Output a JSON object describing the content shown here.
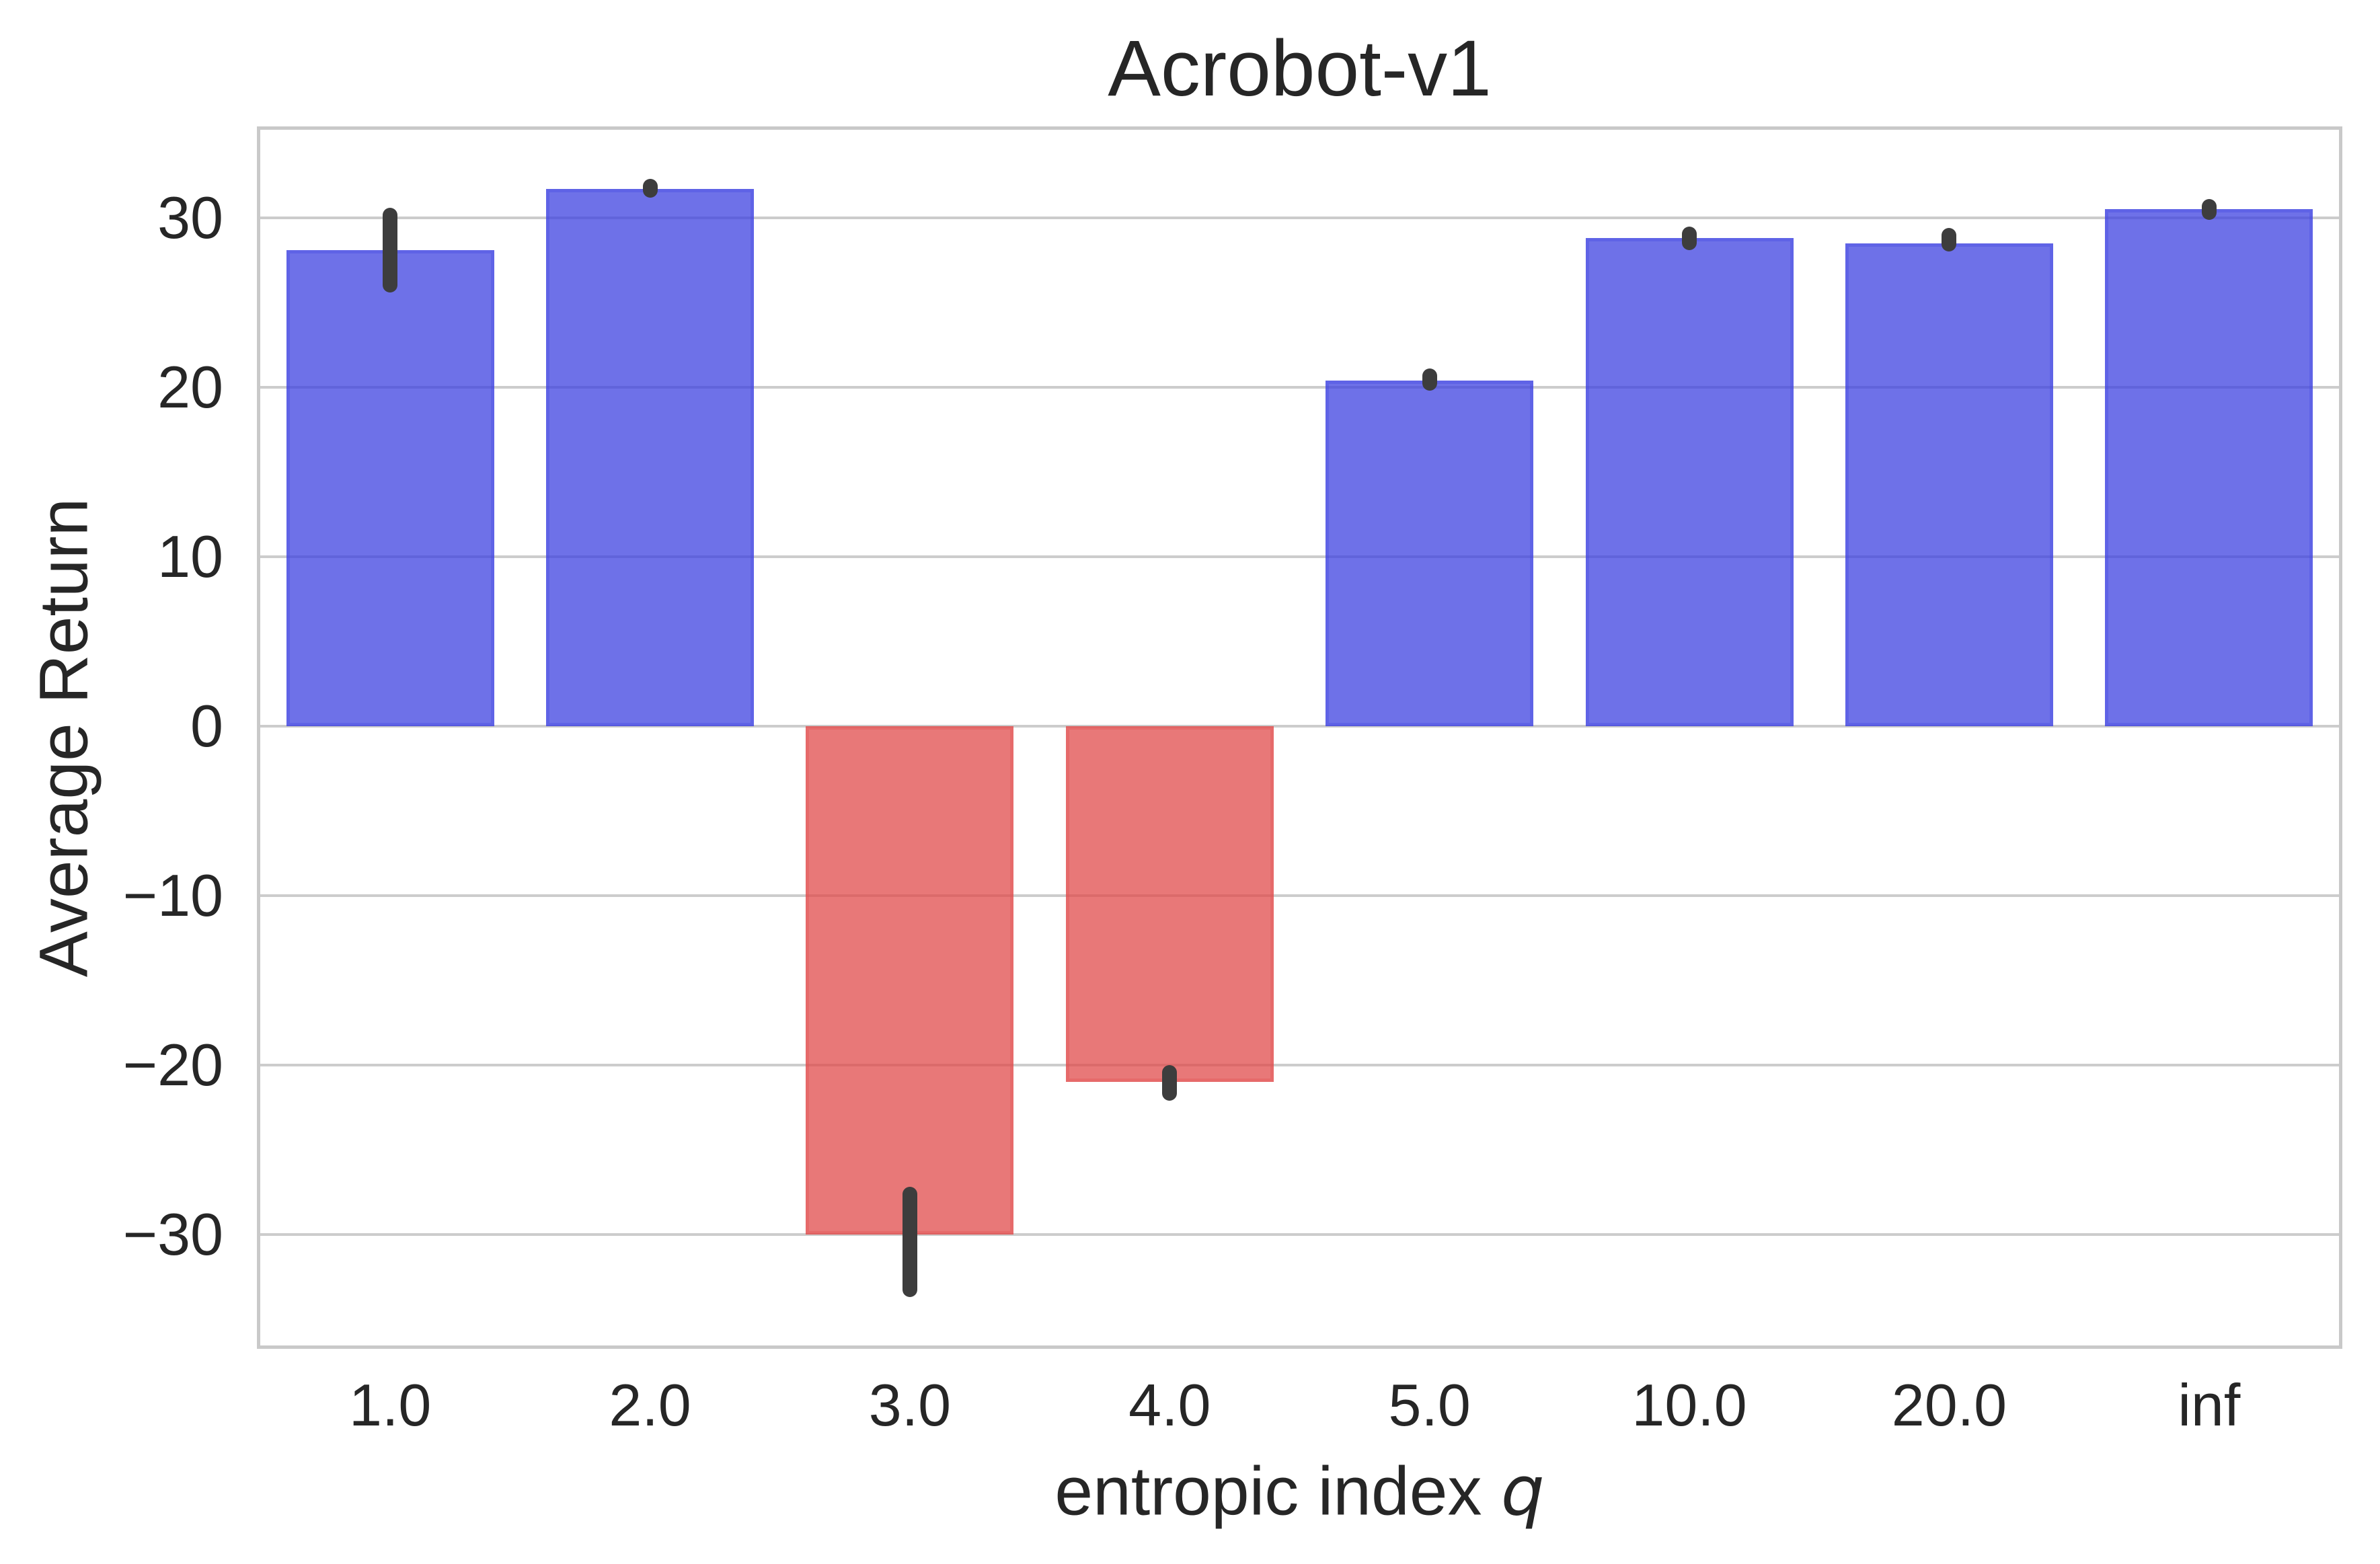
{
  "title": "Acrobot-v1",
  "y_axis": {
    "label": "Average Return",
    "tick_values": [
      30,
      20,
      10,
      0,
      -10,
      -20,
      -30
    ],
    "tick_labels": [
      "30",
      "20",
      "10",
      "0",
      "−10",
      "−20",
      "−30"
    ]
  },
  "x_axis": {
    "label_prefix": "entropic index ",
    "label_variable": "q",
    "tick_labels": [
      "1.0",
      "2.0",
      "3.0",
      "4.0",
      "5.0",
      "10.0",
      "20.0",
      "inf"
    ]
  },
  "chart_data": {
    "type": "bar",
    "title": "Acrobot-v1",
    "xlabel": "entropic index q",
    "ylabel": "Average Return",
    "categories": [
      "1.0",
      "2.0",
      "3.0",
      "4.0",
      "5.0",
      "10.0",
      "20.0",
      "inf"
    ],
    "values": [
      28.1,
      31.7,
      -30.0,
      -21.0,
      20.4,
      28.8,
      28.5,
      30.5
    ],
    "error_low": [
      25.6,
      31.2,
      -33.7,
      -22.1,
      19.8,
      28.1,
      28.0,
      29.9
    ],
    "error_high": [
      30.6,
      32.3,
      -27.2,
      -20.0,
      21.1,
      29.5,
      29.4,
      31.1
    ],
    "yticks": [
      30,
      20,
      10,
      0,
      -10,
      -20,
      -30
    ],
    "ylim": [
      -36.55,
      35.2
    ],
    "grid": true,
    "legend": false,
    "bar_width_fraction": 0.8,
    "positive_color_rgb": "62,66,224",
    "negative_color_rgb": "224,75,75",
    "fill_alpha": 0.75,
    "edge_alpha": 0.3,
    "error_bar_color": "#3d3d3d",
    "grid_color": "#cccccc",
    "spine_color": "#c9c9c9",
    "text_color": "#262626"
  }
}
